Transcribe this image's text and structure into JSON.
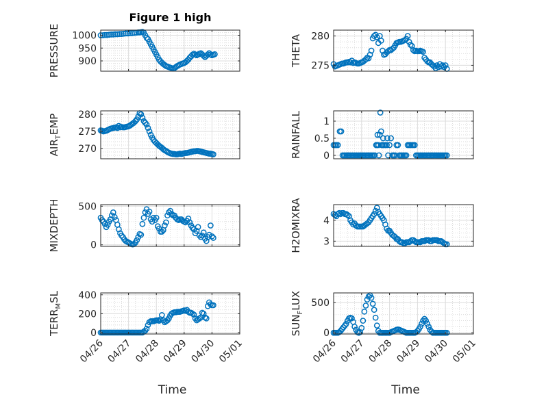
{
  "figure": {
    "title": "Figure 1 high",
    "xlabel": "Time",
    "date_ticks": [
      "04/26",
      "04/27",
      "04/28",
      "04/29",
      "04/30",
      "05/01"
    ],
    "marker_color": "#0072BD"
  },
  "chart_data": [
    {
      "type": "scatter",
      "name": "PRESSURE",
      "ylabel": "PRESSURE",
      "ylim": [
        860,
        1020
      ],
      "yticks": [
        900,
        950,
        1000
      ],
      "grid": true,
      "title": "Figure 1 high",
      "x_days": [
        0,
        0.08,
        0.15,
        0.22,
        0.3,
        0.38,
        0.45,
        0.52,
        0.6,
        0.68,
        0.75,
        0.82,
        0.9,
        0.98,
        1.05,
        1.12,
        1.2,
        1.28,
        1.35,
        1.4,
        1.45,
        1.5,
        1.55,
        1.6,
        1.65,
        1.7,
        1.75,
        1.8,
        1.85,
        1.9,
        1.95,
        2.0,
        2.05,
        2.1,
        2.15,
        2.2,
        2.25,
        2.3,
        2.35,
        2.4,
        2.45,
        2.5,
        2.55,
        2.6,
        2.65,
        2.7,
        2.75,
        2.8,
        2.85,
        2.9,
        2.95,
        3.0,
        3.05,
        3.1,
        3.15,
        3.2,
        3.25,
        3.3,
        3.35,
        3.4,
        3.45,
        3.5,
        3.55,
        3.6,
        3.65,
        3.7,
        3.75,
        3.8,
        3.85,
        3.9,
        3.95,
        4.0,
        4.05,
        4.1
      ],
      "y": [
        1000,
        1000,
        1001,
        1001,
        1002,
        1003,
        1003,
        1004,
        1004,
        1005,
        1005,
        1006,
        1007,
        1007,
        1008,
        1008,
        1009,
        1010,
        1011,
        1011,
        1012,
        1013,
        1010,
        1000,
        990,
        985,
        975,
        965,
        955,
        945,
        935,
        925,
        915,
        905,
        898,
        893,
        888,
        884,
        880,
        878,
        876,
        874,
        872,
        870,
        872,
        876,
        880,
        883,
        886,
        888,
        890,
        892,
        895,
        900,
        905,
        912,
        918,
        924,
        928,
        925,
        922,
        925,
        928,
        930,
        925,
        920,
        915,
        920,
        925,
        930,
        925,
        922,
        924,
        926
      ]
    },
    {
      "type": "scatter",
      "name": "THETA",
      "ylabel": "THETA",
      "ylim": [
        274,
        281
      ],
      "yticks": [
        275,
        280
      ],
      "grid": true,
      "x_days": [
        0,
        0.05,
        0.1,
        0.15,
        0.2,
        0.25,
        0.3,
        0.35,
        0.4,
        0.45,
        0.5,
        0.55,
        0.6,
        0.65,
        0.7,
        0.75,
        0.8,
        0.85,
        0.9,
        0.95,
        1.0,
        1.05,
        1.1,
        1.15,
        1.2,
        1.25,
        1.3,
        1.35,
        1.4,
        1.45,
        1.5,
        1.55,
        1.6,
        1.65,
        1.7,
        1.75,
        1.8,
        1.85,
        1.9,
        1.95,
        2.0,
        2.05,
        2.1,
        2.15,
        2.2,
        2.25,
        2.3,
        2.35,
        2.4,
        2.45,
        2.5,
        2.55,
        2.6,
        2.65,
        2.7,
        2.75,
        2.8,
        2.85,
        2.9,
        2.95,
        3.0,
        3.05,
        3.1,
        3.15,
        3.2,
        3.25,
        3.3,
        3.35,
        3.4,
        3.45,
        3.5,
        3.55,
        3.6,
        3.65,
        3.7,
        3.75,
        3.8,
        3.85,
        3.9,
        3.95,
        4.0,
        4.05
      ],
      "y": [
        275.2,
        274.8,
        274.9,
        275.0,
        275.1,
        275.2,
        275.3,
        275.3,
        275.4,
        275.5,
        275.5,
        275.6,
        275.5,
        275.8,
        275.4,
        275.5,
        275.4,
        275.3,
        275.3,
        275.4,
        275.5,
        275.6,
        275.8,
        276.0,
        276.3,
        276.2,
        276.8,
        277.5,
        279.6,
        280.0,
        280.2,
        279.8,
        278.8,
        280.0,
        279.2,
        277.5,
        276.8,
        276.9,
        277.2,
        277.4,
        277.6,
        277.6,
        277.8,
        278.0,
        278.4,
        278.8,
        278.9,
        279.0,
        279.0,
        279.1,
        279.2,
        279.3,
        279.5,
        280.0,
        279.0,
        278.5,
        278.3,
        277.6,
        277.4,
        277.5,
        277.4,
        277.4,
        277.5,
        277.4,
        277.3,
        276.3,
        276.0,
        275.7,
        275.5,
        275.5,
        275.2,
        275.0,
        274.8,
        274.5,
        275.0,
        274.7,
        275.2,
        274.8,
        275.0,
        274.7,
        275.0,
        274.4
      ]
    },
    {
      "type": "scatter",
      "name": "AIR_TEMP",
      "ylabel": "AIR_TEMP",
      "ylim": [
        267,
        281
      ],
      "yticks": [
        270,
        275,
        280
      ],
      "grid": true,
      "x_days": [
        0,
        0.05,
        0.1,
        0.15,
        0.2,
        0.25,
        0.3,
        0.35,
        0.4,
        0.45,
        0.5,
        0.55,
        0.6,
        0.65,
        0.7,
        0.75,
        0.8,
        0.85,
        0.9,
        0.95,
        1.0,
        1.05,
        1.1,
        1.15,
        1.2,
        1.25,
        1.3,
        1.35,
        1.4,
        1.45,
        1.5,
        1.55,
        1.6,
        1.65,
        1.7,
        1.75,
        1.8,
        1.85,
        1.9,
        1.95,
        2.0,
        2.05,
        2.1,
        2.15,
        2.2,
        2.25,
        2.3,
        2.35,
        2.4,
        2.45,
        2.5,
        2.55,
        2.6,
        2.65,
        2.7,
        2.75,
        2.8,
        2.85,
        2.9,
        2.95,
        3.0,
        3.05,
        3.1,
        3.15,
        3.2,
        3.25,
        3.3,
        3.35,
        3.4,
        3.45,
        3.5,
        3.55,
        3.6,
        3.65,
        3.7,
        3.75,
        3.8,
        3.85,
        3.9,
        3.95,
        4.0,
        4.05
      ],
      "y": [
        275.3,
        275.2,
        275.0,
        275.1,
        275.2,
        275.4,
        275.6,
        275.8,
        275.9,
        276.0,
        276.1,
        276.2,
        276.0,
        276.6,
        276.2,
        276.3,
        276.2,
        276.2,
        276.3,
        276.4,
        276.5,
        276.7,
        277.0,
        277.3,
        277.6,
        278.0,
        278.5,
        279.3,
        280.3,
        280.0,
        279.0,
        278.0,
        277.5,
        277.0,
        276.0,
        275.0,
        274.0,
        273.2,
        272.5,
        272.0,
        271.6,
        271.2,
        270.8,
        270.5,
        270.2,
        269.8,
        269.5,
        269.3,
        269.0,
        268.8,
        268.6,
        268.5,
        268.4,
        268.4,
        268.3,
        268.3,
        268.4,
        268.5,
        268.4,
        268.5,
        268.6,
        268.7,
        268.7,
        268.8,
        268.9,
        269.0,
        269.1,
        269.2,
        269.2,
        269.3,
        269.3,
        269.2,
        269.1,
        269.0,
        268.9,
        268.8,
        268.7,
        268.6,
        268.5,
        268.5,
        268.4,
        268.3
      ]
    },
    {
      "type": "scatter",
      "name": "RAINFALL",
      "ylabel": "RAINFALL",
      "ylim": [
        -0.1,
        1.3
      ],
      "yticks": [
        0,
        0.5,
        1
      ],
      "grid": true,
      "x_days": [
        0,
        0.05,
        0.1,
        0.15,
        0.22,
        0.27,
        0.32,
        0.37,
        0.42,
        0.47,
        0.52,
        0.57,
        0.62,
        0.67,
        0.72,
        0.77,
        0.82,
        0.87,
        0.92,
        0.97,
        1.02,
        1.07,
        1.12,
        1.17,
        1.22,
        1.27,
        1.32,
        1.37,
        1.42,
        1.47,
        1.52,
        1.55,
        1.57,
        1.6,
        1.62,
        1.65,
        1.67,
        1.7,
        1.72,
        1.75,
        1.77,
        1.8,
        1.85,
        1.9,
        1.92,
        1.95,
        2.0,
        2.05,
        2.1,
        2.15,
        2.2,
        2.25,
        2.3,
        2.35,
        2.4,
        2.45,
        2.5,
        2.55,
        2.6,
        2.65,
        2.7,
        2.75,
        2.8,
        2.85,
        2.9,
        2.95,
        3.0,
        3.05,
        3.1,
        3.15,
        3.2,
        3.25,
        3.3,
        3.35,
        3.4,
        3.45,
        3.5,
        3.55,
        3.6,
        3.65,
        3.7,
        3.75,
        3.8,
        3.85,
        3.9,
        3.95,
        4.0,
        4.05
      ],
      "y": [
        0.3,
        0.3,
        0.3,
        0.3,
        0.7,
        0.7,
        0,
        0,
        0,
        0,
        0,
        0,
        0,
        0,
        0,
        0,
        0,
        0,
        0,
        0,
        0,
        0,
        0,
        0,
        0,
        0,
        0,
        0,
        0,
        0,
        0.3,
        0.3,
        0.6,
        0.3,
        0,
        0.6,
        1.25,
        0.7,
        0.3,
        0.3,
        0.5,
        0.3,
        0.3,
        0.3,
        0.5,
        0,
        0.3,
        0.5,
        0,
        0,
        0,
        0.3,
        0.3,
        0,
        0,
        0,
        0,
        0,
        0,
        0.3,
        0.3,
        0.3,
        0.3,
        0.3,
        0.3,
        0,
        0,
        0,
        0,
        0,
        0,
        0,
        0,
        0,
        0,
        0,
        0,
        0,
        0,
        0,
        0,
        0,
        0,
        0,
        0,
        0,
        0,
        0
      ]
    },
    {
      "type": "scatter",
      "name": "MIXDEPTH",
      "ylabel": "MIXDEPTH",
      "ylim": [
        -20,
        520
      ],
      "yticks": [
        0,
        500
      ],
      "grid": true,
      "x_days": [
        0,
        0.05,
        0.1,
        0.15,
        0.2,
        0.25,
        0.3,
        0.35,
        0.4,
        0.45,
        0.5,
        0.55,
        0.6,
        0.65,
        0.7,
        0.75,
        0.8,
        0.85,
        0.9,
        0.95,
        1.0,
        1.05,
        1.1,
        1.15,
        1.2,
        1.25,
        1.3,
        1.35,
        1.4,
        1.45,
        1.5,
        1.55,
        1.6,
        1.65,
        1.7,
        1.75,
        1.8,
        1.85,
        1.9,
        1.95,
        2.0,
        2.05,
        2.1,
        2.15,
        2.2,
        2.25,
        2.3,
        2.35,
        2.4,
        2.45,
        2.5,
        2.55,
        2.6,
        2.65,
        2.7,
        2.75,
        2.8,
        2.85,
        2.9,
        2.95,
        3.0,
        3.05,
        3.1,
        3.15,
        3.2,
        3.25,
        3.3,
        3.35,
        3.4,
        3.45,
        3.5,
        3.55,
        3.6,
        3.65,
        3.7,
        3.75,
        3.8,
        3.85,
        3.9,
        3.95,
        4.0,
        4.05
      ],
      "y": [
        350,
        320,
        300,
        270,
        230,
        260,
        300,
        330,
        380,
        420,
        360,
        320,
        260,
        200,
        150,
        120,
        100,
        70,
        50,
        40,
        30,
        20,
        10,
        5,
        10,
        30,
        60,
        100,
        140,
        130,
        270,
        350,
        420,
        460,
        400,
        430,
        330,
        300,
        350,
        320,
        350,
        240,
        210,
        170,
        170,
        190,
        250,
        290,
        380,
        420,
        440,
        400,
        380,
        380,
        350,
        330,
        320,
        330,
        330,
        310,
        300,
        290,
        310,
        340,
        290,
        250,
        220,
        200,
        150,
        180,
        230,
        120,
        100,
        120,
        160,
        80,
        50,
        100,
        130,
        250,
        110,
        90
      ]
    },
    {
      "type": "scatter",
      "name": "H2OMIXRA",
      "ylabel": "H2OMIXRA",
      "ylim": [
        2.75,
        4.75
      ],
      "yticks": [
        3,
        4
      ],
      "grid": true,
      "x_days": [
        0,
        0.05,
        0.1,
        0.15,
        0.2,
        0.25,
        0.3,
        0.35,
        0.4,
        0.45,
        0.5,
        0.55,
        0.6,
        0.65,
        0.7,
        0.75,
        0.8,
        0.85,
        0.9,
        0.95,
        1.0,
        1.05,
        1.1,
        1.15,
        1.2,
        1.25,
        1.3,
        1.35,
        1.4,
        1.45,
        1.5,
        1.55,
        1.6,
        1.65,
        1.7,
        1.75,
        1.8,
        1.85,
        1.9,
        1.95,
        2.0,
        2.05,
        2.1,
        2.15,
        2.2,
        2.25,
        2.3,
        2.35,
        2.4,
        2.45,
        2.5,
        2.55,
        2.6,
        2.65,
        2.7,
        2.75,
        2.8,
        2.85,
        2.9,
        2.95,
        3.0,
        3.05,
        3.1,
        3.15,
        3.2,
        3.25,
        3.3,
        3.35,
        3.4,
        3.45,
        3.5,
        3.55,
        3.6,
        3.65,
        3.7,
        3.75,
        3.8,
        3.85,
        3.9,
        3.95,
        4.0,
        4.05
      ],
      "y": [
        4.3,
        4.25,
        4.2,
        4.3,
        4.35,
        4.3,
        4.35,
        4.35,
        4.3,
        4.3,
        4.25,
        4.2,
        4.0,
        3.9,
        3.8,
        3.85,
        3.75,
        3.7,
        3.7,
        3.7,
        3.7,
        3.7,
        3.75,
        3.8,
        3.85,
        3.9,
        4.0,
        4.1,
        4.2,
        4.3,
        4.45,
        4.6,
        4.4,
        4.3,
        4.2,
        4.1,
        4.0,
        3.8,
        3.6,
        3.5,
        3.5,
        3.4,
        3.3,
        3.25,
        3.2,
        3.1,
        3.1,
        3.0,
        2.95,
        2.95,
        2.9,
        2.9,
        2.95,
        2.95,
        2.95,
        3.0,
        3.05,
        3.05,
        3.0,
        2.95,
        2.95,
        2.95,
        2.95,
        3.0,
        3.0,
        3.0,
        3.05,
        3.05,
        3.05,
        3.0,
        3.0,
        3.05,
        3.05,
        3.05,
        3.05,
        3.0,
        3.0,
        3.0,
        2.95,
        2.9,
        2.85,
        2.85
      ]
    },
    {
      "type": "scatter",
      "name": "TERR_MSL",
      "ylabel": "TERR_MSL",
      "ylim": [
        -15,
        420
      ],
      "yticks": [
        0,
        200,
        400
      ],
      "grid": true,
      "x_days": [
        0,
        0.05,
        0.1,
        0.15,
        0.2,
        0.25,
        0.3,
        0.35,
        0.4,
        0.45,
        0.5,
        0.55,
        0.6,
        0.65,
        0.7,
        0.75,
        0.8,
        0.85,
        0.9,
        0.95,
        1.0,
        1.05,
        1.1,
        1.15,
        1.2,
        1.25,
        1.3,
        1.35,
        1.4,
        1.45,
        1.5,
        1.55,
        1.6,
        1.65,
        1.7,
        1.75,
        1.8,
        1.85,
        1.9,
        1.95,
        2.0,
        2.05,
        2.1,
        2.15,
        2.2,
        2.25,
        2.3,
        2.35,
        2.4,
        2.45,
        2.5,
        2.55,
        2.6,
        2.65,
        2.7,
        2.75,
        2.8,
        2.85,
        2.9,
        2.95,
        3.0,
        3.05,
        3.1,
        3.15,
        3.2,
        3.25,
        3.3,
        3.35,
        3.4,
        3.45,
        3.5,
        3.55,
        3.6,
        3.65,
        3.7,
        3.75,
        3.8,
        3.85,
        3.9,
        3.95,
        4.0,
        4.05
      ],
      "y": [
        0,
        0,
        0,
        0,
        0,
        0,
        0,
        0,
        0,
        0,
        0,
        0,
        0,
        0,
        0,
        0,
        0,
        0,
        0,
        0,
        0,
        0,
        0,
        0,
        0,
        0,
        0,
        0,
        0,
        0,
        0,
        10,
        20,
        40,
        80,
        110,
        120,
        120,
        120,
        125,
        130,
        130,
        125,
        140,
        185,
        130,
        110,
        120,
        130,
        150,
        180,
        200,
        210,
        215,
        215,
        220,
        220,
        220,
        225,
        230,
        235,
        230,
        240,
        220,
        210,
        210,
        200,
        190,
        150,
        130,
        140,
        150,
        160,
        210,
        200,
        160,
        150,
        280,
        320,
        300,
        290,
        290
      ]
    },
    {
      "type": "scatter",
      "name": "SUN_FLUX",
      "ylabel": "SUN_FLUX",
      "ylim": [
        -20,
        660
      ],
      "yticks": [
        0,
        500
      ],
      "grid": true,
      "x_days": [
        0,
        0.05,
        0.1,
        0.15,
        0.2,
        0.25,
        0.3,
        0.35,
        0.4,
        0.45,
        0.5,
        0.55,
        0.6,
        0.65,
        0.7,
        0.75,
        0.8,
        0.85,
        0.9,
        0.95,
        1.0,
        1.05,
        1.1,
        1.15,
        1.2,
        1.25,
        1.3,
        1.35,
        1.4,
        1.45,
        1.5,
        1.55,
        1.6,
        1.65,
        1.7,
        1.75,
        1.8,
        1.85,
        1.9,
        1.95,
        2.0,
        2.05,
        2.1,
        2.15,
        2.2,
        2.25,
        2.3,
        2.35,
        2.4,
        2.45,
        2.5,
        2.55,
        2.6,
        2.65,
        2.7,
        2.75,
        2.8,
        2.85,
        2.9,
        2.95,
        3.0,
        3.05,
        3.1,
        3.15,
        3.2,
        3.25,
        3.3,
        3.35,
        3.4,
        3.45,
        3.5,
        3.55,
        3.6,
        3.65,
        3.7,
        3.75,
        3.8,
        3.85,
        3.9,
        3.95,
        4.0,
        4.05
      ],
      "y": [
        0,
        0,
        0,
        0,
        10,
        30,
        60,
        90,
        120,
        150,
        200,
        240,
        250,
        240,
        180,
        100,
        50,
        10,
        0,
        10,
        80,
        200,
        350,
        450,
        550,
        600,
        620,
        580,
        480,
        380,
        250,
        120,
        30,
        0,
        0,
        0,
        0,
        0,
        0,
        0,
        0,
        10,
        20,
        30,
        40,
        50,
        55,
        50,
        40,
        30,
        20,
        10,
        0,
        0,
        0,
        0,
        0,
        0,
        0,
        10,
        30,
        60,
        100,
        150,
        200,
        230,
        200,
        150,
        100,
        50,
        20,
        0,
        0,
        0,
        0,
        0,
        0,
        0,
        0,
        0,
        0,
        0
      ]
    }
  ]
}
